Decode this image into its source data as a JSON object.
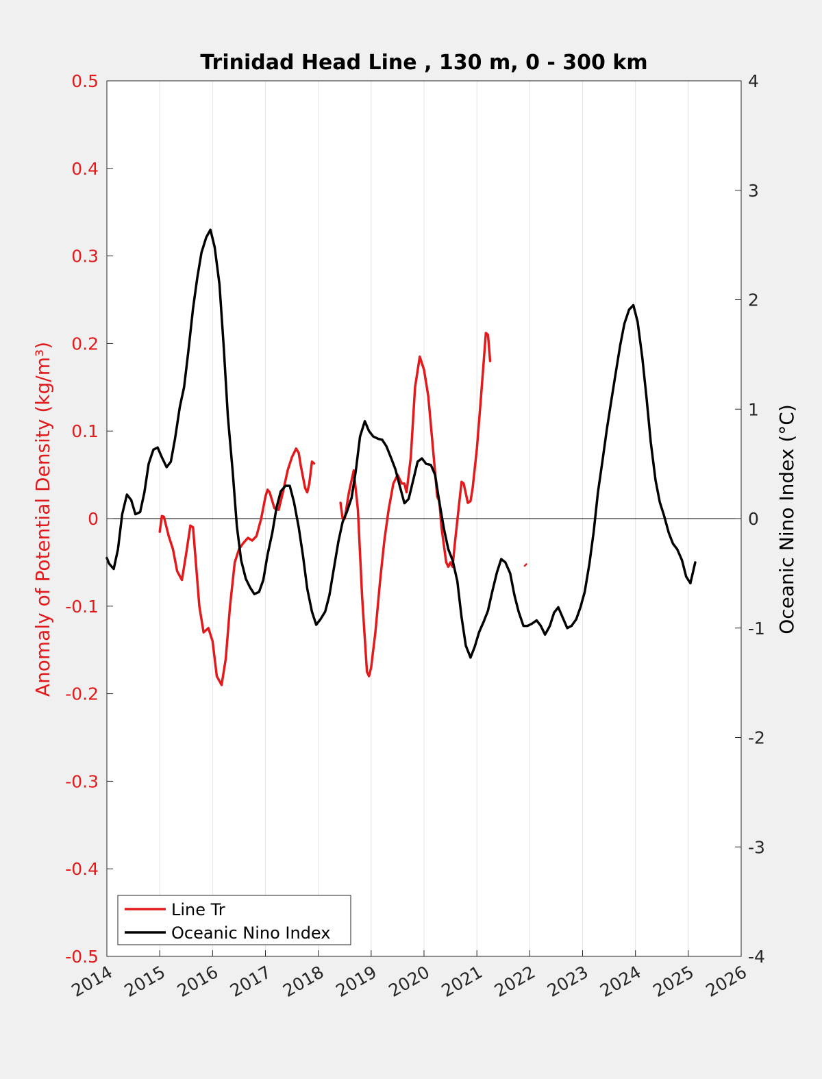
{
  "chart_data": {
    "type": "line",
    "title": "Trinidad Head Line , 130 m, 0 - 300 km",
    "xlabel": "",
    "ylabel_left": "Anomaly of Potential Density (kg/m³)",
    "ylabel_right": "Oceanic Nino Index (°C)",
    "xlim": [
      2014,
      2026
    ],
    "ylim_left": [
      -0.5,
      0.5
    ],
    "ylim_right": [
      -4,
      4
    ],
    "x_ticks": [
      "2014",
      "2015",
      "2016",
      "2017",
      "2018",
      "2019",
      "2020",
      "2021",
      "2022",
      "2023",
      "2024",
      "2025",
      "2026"
    ],
    "y_left_ticks": [
      "0.5",
      "0.4",
      "0.3",
      "0.2",
      "0.1",
      "0",
      "-0.1",
      "-0.2",
      "-0.3",
      "-0.4",
      "-0.5"
    ],
    "y_right_ticks": [
      "4",
      "3",
      "2",
      "1",
      "0",
      "-1",
      "-2",
      "-3",
      "-4"
    ],
    "grid": "vertical",
    "legend_position": "bottom-left",
    "colors": {
      "line_tr": "#e31a1c",
      "oni": "#000000",
      "left_axis": "#e31a1c",
      "right_axis": "#000000"
    },
    "series": [
      {
        "name": "Line Tr",
        "axis": "left",
        "segments": [
          [
            [
              2015.0,
              -0.015
            ],
            [
              2015.04,
              0.003
            ],
            [
              2015.08,
              0.002
            ],
            [
              2015.17,
              -0.02
            ],
            [
              2015.25,
              -0.035
            ],
            [
              2015.33,
              -0.06
            ],
            [
              2015.42,
              -0.07
            ],
            [
              2015.5,
              -0.04
            ],
            [
              2015.58,
              -0.008
            ],
            [
              2015.63,
              -0.01
            ],
            [
              2015.67,
              -0.04
            ],
            [
              2015.75,
              -0.1
            ],
            [
              2015.83,
              -0.13
            ],
            [
              2015.92,
              -0.125
            ],
            [
              2016.0,
              -0.14
            ],
            [
              2016.08,
              -0.18
            ],
            [
              2016.17,
              -0.19
            ],
            [
              2016.25,
              -0.16
            ],
            [
              2016.33,
              -0.1
            ],
            [
              2016.42,
              -0.05
            ],
            [
              2016.5,
              -0.035
            ],
            [
              2016.58,
              -0.028
            ],
            [
              2016.67,
              -0.022
            ],
            [
              2016.75,
              -0.025
            ],
            [
              2016.83,
              -0.02
            ],
            [
              2016.92,
              0.0
            ],
            [
              2017.0,
              0.025
            ],
            [
              2017.04,
              0.033
            ],
            [
              2017.08,
              0.03
            ],
            [
              2017.17,
              0.012
            ],
            [
              2017.25,
              0.01
            ],
            [
              2017.33,
              0.03
            ],
            [
              2017.42,
              0.055
            ],
            [
              2017.5,
              0.07
            ],
            [
              2017.58,
              0.08
            ],
            [
              2017.63,
              0.075
            ],
            [
              2017.67,
              0.06
            ],
            [
              2017.75,
              0.035
            ],
            [
              2017.79,
              0.03
            ],
            [
              2017.83,
              0.04
            ],
            [
              2017.88,
              0.065
            ],
            [
              2017.92,
              0.063
            ]
          ],
          [
            [
              2018.42,
              0.018
            ],
            [
              2018.46,
              0.0
            ],
            [
              2018.5,
              0.0
            ],
            [
              2018.58,
              0.03
            ],
            [
              2018.67,
              0.055
            ],
            [
              2018.75,
              0.01
            ],
            [
              2018.83,
              -0.09
            ],
            [
              2018.92,
              -0.175
            ],
            [
              2018.96,
              -0.18
            ],
            [
              2019.0,
              -0.17
            ],
            [
              2019.08,
              -0.13
            ],
            [
              2019.17,
              -0.07
            ],
            [
              2019.25,
              -0.025
            ],
            [
              2019.33,
              0.01
            ],
            [
              2019.42,
              0.04
            ],
            [
              2019.5,
              0.05
            ],
            [
              2019.58,
              0.04
            ],
            [
              2019.63,
              0.04
            ],
            [
              2019.67,
              0.03
            ],
            [
              2019.75,
              0.07
            ],
            [
              2019.83,
              0.15
            ],
            [
              2019.92,
              0.185
            ],
            [
              2020.0,
              0.17
            ],
            [
              2020.08,
              0.14
            ],
            [
              2020.17,
              0.08
            ],
            [
              2020.25,
              0.025
            ],
            [
              2020.29,
              0.02
            ],
            [
              2020.33,
              -0.01
            ],
            [
              2020.42,
              -0.05
            ],
            [
              2020.46,
              -0.055
            ],
            [
              2020.5,
              -0.05
            ],
            [
              2020.54,
              -0.055
            ],
            [
              2020.58,
              -0.03
            ],
            [
              2020.67,
              0.02
            ],
            [
              2020.71,
              0.042
            ],
            [
              2020.75,
              0.04
            ],
            [
              2020.83,
              0.018
            ],
            [
              2020.88,
              0.02
            ],
            [
              2020.92,
              0.035
            ],
            [
              2021.0,
              0.08
            ],
            [
              2021.08,
              0.14
            ],
            [
              2021.17,
              0.212
            ],
            [
              2021.21,
              0.21
            ],
            [
              2021.25,
              0.18
            ]
          ]
        ],
        "points": [
          [
            2021.92,
            -0.053
          ]
        ]
      },
      {
        "name": "Oceanic Nino Index",
        "axis": "right",
        "segments": [
          [
            [
              2014.0,
              -0.36
            ],
            [
              2014.04,
              -0.41
            ],
            [
              2014.13,
              -0.46
            ],
            [
              2014.21,
              -0.28
            ],
            [
              2014.29,
              0.04
            ],
            [
              2014.38,
              0.22
            ],
            [
              2014.46,
              0.17
            ],
            [
              2014.54,
              0.04
            ],
            [
              2014.63,
              0.06
            ],
            [
              2014.71,
              0.24
            ],
            [
              2014.79,
              0.5
            ],
            [
              2014.88,
              0.63
            ],
            [
              2014.96,
              0.65
            ],
            [
              2015.04,
              0.56
            ],
            [
              2015.13,
              0.47
            ],
            [
              2015.21,
              0.52
            ],
            [
              2015.29,
              0.73
            ],
            [
              2015.38,
              1.02
            ],
            [
              2015.46,
              1.2
            ],
            [
              2015.54,
              1.52
            ],
            [
              2015.63,
              1.92
            ],
            [
              2015.71,
              2.2
            ],
            [
              2015.79,
              2.43
            ],
            [
              2015.88,
              2.57
            ],
            [
              2015.96,
              2.64
            ],
            [
              2016.04,
              2.48
            ],
            [
              2016.13,
              2.14
            ],
            [
              2016.21,
              1.58
            ],
            [
              2016.29,
              0.93
            ],
            [
              2016.38,
              0.43
            ],
            [
              2016.46,
              -0.07
            ],
            [
              2016.54,
              -0.38
            ],
            [
              2016.63,
              -0.55
            ],
            [
              2016.71,
              -0.63
            ],
            [
              2016.79,
              -0.69
            ],
            [
              2016.88,
              -0.67
            ],
            [
              2016.96,
              -0.56
            ],
            [
              2017.04,
              -0.33
            ],
            [
              2017.13,
              -0.13
            ],
            [
              2017.21,
              0.1
            ],
            [
              2017.29,
              0.25
            ],
            [
              2017.38,
              0.3
            ],
            [
              2017.46,
              0.3
            ],
            [
              2017.54,
              0.15
            ],
            [
              2017.63,
              -0.08
            ],
            [
              2017.71,
              -0.34
            ],
            [
              2017.79,
              -0.64
            ],
            [
              2017.88,
              -0.85
            ],
            [
              2017.96,
              -0.97
            ],
            [
              2018.04,
              -0.92
            ],
            [
              2018.13,
              -0.85
            ],
            [
              2018.21,
              -0.7
            ],
            [
              2018.29,
              -0.47
            ],
            [
              2018.38,
              -0.21
            ],
            [
              2018.46,
              -0.03
            ],
            [
              2018.54,
              0.06
            ],
            [
              2018.63,
              0.19
            ],
            [
              2018.71,
              0.44
            ],
            [
              2018.79,
              0.75
            ],
            [
              2018.88,
              0.89
            ],
            [
              2018.96,
              0.8
            ],
            [
              2019.04,
              0.75
            ],
            [
              2019.13,
              0.73
            ],
            [
              2019.21,
              0.72
            ],
            [
              2019.29,
              0.66
            ],
            [
              2019.38,
              0.55
            ],
            [
              2019.46,
              0.45
            ],
            [
              2019.54,
              0.3
            ],
            [
              2019.63,
              0.14
            ],
            [
              2019.71,
              0.18
            ],
            [
              2019.79,
              0.34
            ],
            [
              2019.88,
              0.52
            ],
            [
              2019.96,
              0.55
            ],
            [
              2020.04,
              0.5
            ],
            [
              2020.13,
              0.49
            ],
            [
              2020.21,
              0.4
            ],
            [
              2020.29,
              0.15
            ],
            [
              2020.38,
              -0.1
            ],
            [
              2020.46,
              -0.28
            ],
            [
              2020.54,
              -0.38
            ],
            [
              2020.63,
              -0.57
            ],
            [
              2020.71,
              -0.9
            ],
            [
              2020.79,
              -1.16
            ],
            [
              2020.88,
              -1.27
            ],
            [
              2020.96,
              -1.17
            ],
            [
              2021.04,
              -1.04
            ],
            [
              2021.13,
              -0.94
            ],
            [
              2021.21,
              -0.84
            ],
            [
              2021.29,
              -0.67
            ],
            [
              2021.38,
              -0.49
            ],
            [
              2021.46,
              -0.37
            ],
            [
              2021.54,
              -0.4
            ],
            [
              2021.63,
              -0.5
            ],
            [
              2021.71,
              -0.7
            ],
            [
              2021.79,
              -0.85
            ],
            [
              2021.88,
              -0.98
            ],
            [
              2021.96,
              -0.98
            ],
            [
              2022.04,
              -0.96
            ],
            [
              2022.13,
              -0.93
            ],
            [
              2022.21,
              -0.98
            ],
            [
              2022.29,
              -1.06
            ],
            [
              2022.38,
              -0.98
            ],
            [
              2022.46,
              -0.86
            ],
            [
              2022.54,
              -0.81
            ],
            [
              2022.63,
              -0.91
            ],
            [
              2022.71,
              -1.0
            ],
            [
              2022.79,
              -0.98
            ],
            [
              2022.88,
              -0.92
            ],
            [
              2022.96,
              -0.81
            ],
            [
              2023.04,
              -0.67
            ],
            [
              2023.13,
              -0.41
            ],
            [
              2023.21,
              -0.12
            ],
            [
              2023.29,
              0.24
            ],
            [
              2023.38,
              0.54
            ],
            [
              2023.46,
              0.82
            ],
            [
              2023.54,
              1.07
            ],
            [
              2023.63,
              1.34
            ],
            [
              2023.71,
              1.58
            ],
            [
              2023.79,
              1.78
            ],
            [
              2023.88,
              1.91
            ],
            [
              2023.96,
              1.95
            ],
            [
              2024.04,
              1.8
            ],
            [
              2024.13,
              1.47
            ],
            [
              2024.21,
              1.1
            ],
            [
              2024.29,
              0.7
            ],
            [
              2024.38,
              0.35
            ],
            [
              2024.46,
              0.15
            ],
            [
              2024.54,
              0.03
            ],
            [
              2024.63,
              -0.13
            ],
            [
              2024.71,
              -0.23
            ],
            [
              2024.79,
              -0.28
            ],
            [
              2024.88,
              -0.38
            ],
            [
              2024.96,
              -0.53
            ],
            [
              2025.04,
              -0.59
            ],
            [
              2025.13,
              -0.4
            ]
          ]
        ]
      }
    ]
  }
}
